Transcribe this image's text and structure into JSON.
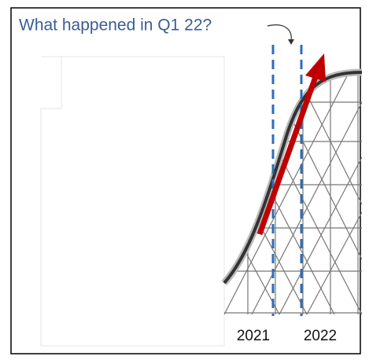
{
  "title": "What happened in Q1 22?",
  "labels": [
    "2021",
    "2022"
  ]
}
